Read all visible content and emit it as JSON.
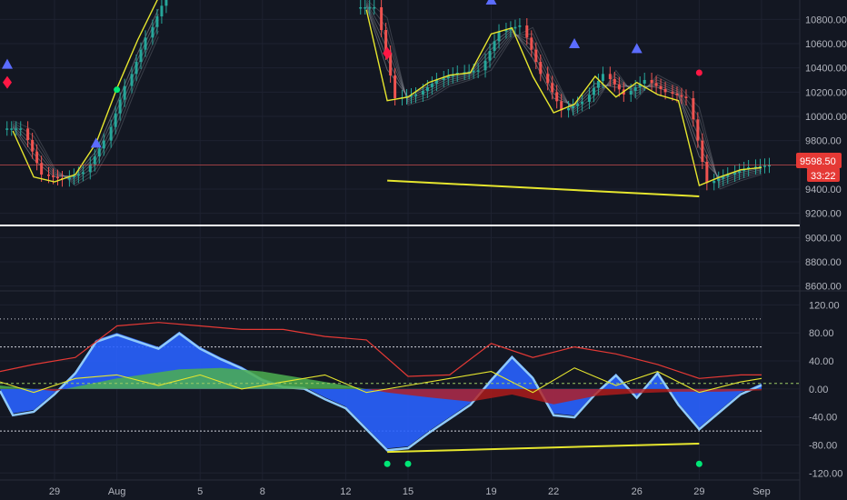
{
  "colors": {
    "background": "#131722",
    "grid": "#1e2230",
    "candle_up": "#26a69a",
    "candle_down": "#ef5350",
    "ribbon": "#9598a1",
    "signal_line": "#e6e62e",
    "support_line": "#ffffff",
    "wave_blue": "#2962ff",
    "wave_light": "#90caf9",
    "green_fill": "#4caf50",
    "red_fill": "#b71c1c",
    "rsi_line": "#e53935",
    "zero_line": "#9ccc65",
    "price_badge": "#e53935",
    "dot_green": "#00e676"
  },
  "price_badge": {
    "price": "9598.50",
    "countdown": "33:22"
  },
  "chart_data": [
    {
      "type": "line",
      "title": "",
      "ylim": [
        8560,
        10960
      ],
      "y_ticks": [
        "10800.00",
        "10600.00",
        "10400.00",
        "10200.00",
        "10000.00",
        "9800.00",
        "9600.00",
        "9400.00",
        "9200.00",
        "9000.00",
        "8800.00",
        "8600.00"
      ],
      "y_tick_values": [
        10800,
        10600,
        10400,
        10200,
        10000,
        9800,
        9600,
        9400,
        9200,
        9000,
        8800,
        8600
      ],
      "x_ticks": [
        "29",
        "Aug",
        "5",
        "8",
        "12",
        "15",
        "19",
        "22",
        "26",
        "29",
        "Sep"
      ],
      "series": [
        {
          "x": [
            "Jul 27",
            "Jul 28",
            "Jul 29",
            "Jul 30",
            "Jul 31",
            "Aug 1",
            "Aug 2",
            "Aug 3",
            "Aug 4",
            "Aug 5",
            "Aug 6",
            "Aug 7",
            "Aug 8",
            "Aug 9",
            "Aug 10",
            "Aug 11",
            "Aug 12",
            "Aug 13",
            "Aug 14",
            "Aug 15",
            "Aug 16",
            "Aug 17",
            "Aug 18",
            "Aug 19",
            "Aug 20",
            "Aug 21",
            "Aug 22",
            "Aug 23",
            "Aug 24",
            "Aug 25",
            "Aug 26",
            "Aug 27",
            "Aug 28",
            "Aug 29",
            "Aug 30",
            "Aug 31",
            "Sep 1"
          ],
          "values": [
            9900,
            9520,
            9480,
            9540,
            9800,
            10250,
            10650,
            11000,
            null,
            null,
            null,
            null,
            null,
            null,
            null,
            null,
            null,
            10900,
            10150,
            10180,
            10300,
            10360,
            10380,
            10700,
            10750,
            10350,
            10050,
            10120,
            10350,
            10180,
            10300,
            10200,
            10150,
            9450,
            9520,
            9580,
            9598
          ]
        }
      ],
      "trend_lines": [
        {
          "from": [
            "Aug 14",
            9470
          ],
          "to": [
            "Aug 29",
            9340
          ]
        }
      ],
      "horizontal_lines": [
        {
          "y": 9100
        },
        {
          "y": 9598.5
        }
      ]
    },
    {
      "type": "area",
      "title": "",
      "ylim": [
        -130,
        140
      ],
      "y_ticks": [
        "120.00",
        "80.00",
        "40.00",
        "0.00",
        "-40.00",
        "-80.00",
        "-120.00"
      ],
      "y_tick_values": [
        120,
        80,
        40,
        0,
        -40,
        -80,
        -120
      ],
      "bands": [
        100,
        60,
        -60
      ],
      "series": [
        {
          "x": [
            "Jul 26",
            "Jul 27",
            "Jul 28",
            "Jul 29",
            "Jul 30",
            "Jul 31",
            "Aug 1",
            "Aug 2",
            "Aug 3",
            "Aug 4",
            "Aug 5",
            "Aug 6",
            "Aug 7",
            "Aug 8",
            "Aug 9",
            "Aug 10",
            "Aug 11",
            "Aug 12",
            "Aug 13",
            "Aug 14",
            "Aug 15",
            "Aug 16",
            "Aug 17",
            "Aug 18",
            "Aug 19",
            "Aug 20",
            "Aug 21",
            "Aug 22",
            "Aug 23",
            "Aug 24",
            "Aug 25",
            "Aug 26",
            "Aug 27",
            "Aug 28",
            "Aug 29",
            "Aug 30",
            "Aug 31",
            "Sep 1"
          ],
          "values": [
            0,
            -35,
            -30,
            -5,
            25,
            70,
            80,
            70,
            60,
            82,
            60,
            45,
            32,
            15,
            5,
            3,
            -12,
            -25,
            -55,
            -85,
            -82,
            -60,
            -40,
            -20,
            15,
            48,
            18,
            -35,
            -38,
            -5,
            22,
            -10,
            25,
            -20,
            -55,
            -30,
            -5,
            8
          ]
        },
        {
          "x": [
            "Jul 26",
            "Jul 29",
            "Aug 1",
            "Aug 4",
            "Aug 6",
            "Aug 8",
            "Aug 10",
            "Aug 12",
            "Aug 14",
            "Aug 16",
            "Aug 18",
            "Aug 20",
            "Aug 22",
            "Aug 24",
            "Aug 26",
            "Aug 28",
            "Aug 30",
            "Sep 1"
          ],
          "values": [
            5,
            -3,
            15,
            28,
            30,
            25,
            15,
            5,
            -5,
            -12,
            -18,
            -8,
            -22,
            -10,
            -6,
            -4,
            -4,
            -2
          ]
        },
        {
          "x": [
            "Jul 26",
            "Jul 28",
            "Jul 30",
            "Aug 1",
            "Aug 3",
            "Aug 5",
            "Aug 7",
            "Aug 9",
            "Aug 11",
            "Aug 13",
            "Aug 15",
            "Aug 17",
            "Aug 19",
            "Aug 21",
            "Aug 23",
            "Aug 25",
            "Aug 27",
            "Aug 29",
            "Aug 31",
            "Sep 1"
          ],
          "values": [
            25,
            35,
            45,
            90,
            95,
            90,
            85,
            85,
            75,
            70,
            18,
            20,
            65,
            45,
            60,
            50,
            35,
            15,
            20,
            20
          ]
        },
        {
          "x": [
            "Jul 26",
            "Jul 28",
            "Jul 30",
            "Aug 1",
            "Aug 3",
            "Aug 5",
            "Aug 7",
            "Aug 9",
            "Aug 11",
            "Aug 13",
            "Aug 15",
            "Aug 17",
            "Aug 19",
            "Aug 21",
            "Aug 23",
            "Aug 25",
            "Aug 27",
            "Aug 29",
            "Aug 31",
            "Sep 1"
          ],
          "values": [
            10,
            -5,
            15,
            20,
            5,
            20,
            0,
            10,
            20,
            -5,
            5,
            15,
            25,
            -5,
            30,
            5,
            25,
            -5,
            10,
            15
          ]
        }
      ],
      "trend_lines": [
        {
          "from": [
            "Aug 14",
            -90
          ],
          "to": [
            "Aug 29",
            -78
          ]
        }
      ],
      "markers": [
        {
          "x": "Aug 14",
          "y": -107
        },
        {
          "x": "Aug 15",
          "y": -107
        },
        {
          "x": "Aug 29",
          "y": -107
        }
      ]
    }
  ]
}
